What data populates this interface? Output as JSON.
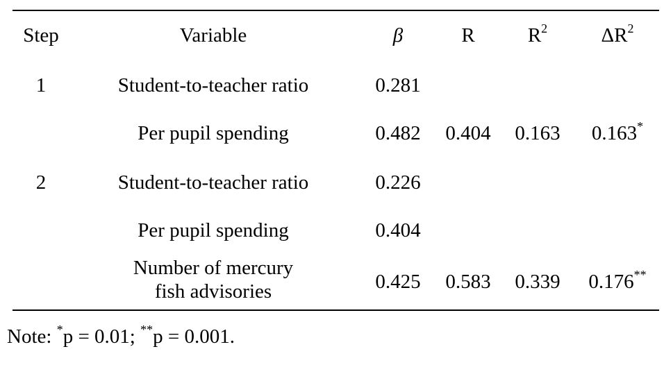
{
  "table": {
    "headers": {
      "step": "Step",
      "variable": "Variable",
      "beta": "β",
      "r": "R",
      "r2_base": "R",
      "r2_sup": "2",
      "dr2_base": "ΔR",
      "dr2_sup": "2"
    },
    "rows": [
      {
        "step": "1",
        "variable": "Student-to-teacher ratio",
        "beta": "0.281",
        "r": "",
        "r2": "",
        "dr2": "",
        "dr2_sig": ""
      },
      {
        "step": "",
        "variable": "Per pupil spending",
        "beta": "0.482",
        "r": "0.404",
        "r2": "0.163",
        "dr2": "0.163",
        "dr2_sig": "*"
      },
      {
        "step": "2",
        "variable": "Student-to-teacher ratio",
        "beta": "0.226",
        "r": "",
        "r2": "",
        "dr2": "",
        "dr2_sig": ""
      },
      {
        "step": "",
        "variable": "Per pupil spending",
        "beta": "0.404",
        "r": "",
        "r2": "",
        "dr2": "",
        "dr2_sig": ""
      },
      {
        "step": "",
        "variable_line1": "Number of mercury",
        "variable_line2": "fish advisories",
        "beta": "0.425",
        "r": "0.583",
        "r2": "0.339",
        "dr2": "0.176",
        "dr2_sig": "**"
      }
    ]
  },
  "note": {
    "prefix": "Note: ",
    "sig1_mark": "*",
    "sig1_text": "p = 0.01; ",
    "sig2_mark": "**",
    "sig2_text": "p = 0.001."
  }
}
